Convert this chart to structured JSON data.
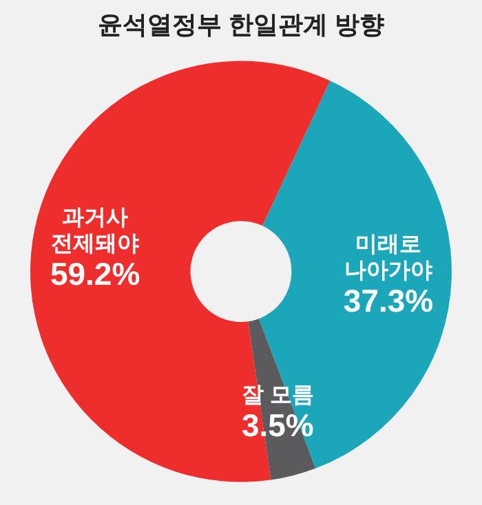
{
  "chart_data": {
    "type": "donut",
    "title": "윤석열정부 한일관계 방향",
    "categories": [
      "미래로\n나아가야",
      "잘 모름",
      "과거사\n전제돼야"
    ],
    "values": [
      37.3,
      3.5,
      59.2
    ],
    "colors": [
      "#1ba6b9",
      "#5b5b5d",
      "#ee2d2c"
    ],
    "value_labels": [
      "37.3%",
      "3.5%",
      "59.2%"
    ],
    "legend": false
  }
}
